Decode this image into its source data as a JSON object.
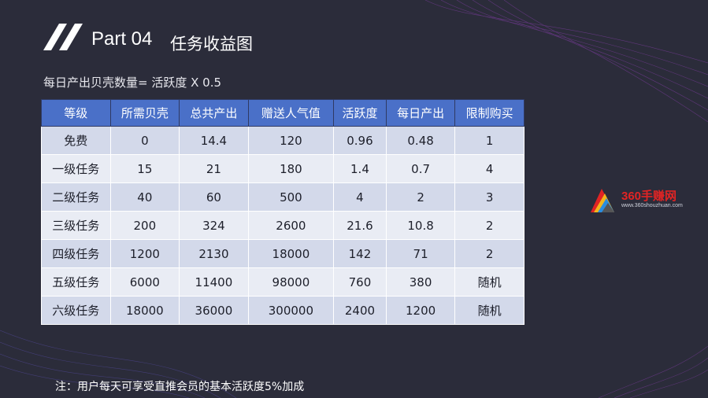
{
  "slide": {
    "part": "Part 04",
    "subtitle": "任务收益图",
    "formula": "每日产出贝壳数量= 活跃度 X 0.5",
    "note": "注：用户每天可享受直推会员的基本活跃度5%加成"
  },
  "table": {
    "headers": [
      "等级",
      "所需贝壳",
      "总共产出",
      "赠送人气值",
      "活跃度",
      "每日产出",
      "限制购买"
    ],
    "rows": [
      [
        "免费",
        "0",
        "14.4",
        "120",
        "0.96",
        "0.48",
        "1"
      ],
      [
        "一级任务",
        "15",
        "21",
        "180",
        "1.4",
        "0.7",
        "4"
      ],
      [
        "二级任务",
        "40",
        "60",
        "500",
        "4",
        "2",
        "3"
      ],
      [
        "三级任务",
        "200",
        "324",
        "2600",
        "21.6",
        "10.8",
        "2"
      ],
      [
        "四级任务",
        "1200",
        "2130",
        "18000",
        "142",
        "71",
        "2"
      ],
      [
        "五级任务",
        "6000",
        "11400",
        "98000",
        "760",
        "380",
        "随机"
      ],
      [
        "六级任务",
        "18000",
        "36000",
        "300000",
        "2400",
        "1200",
        "随机"
      ]
    ]
  },
  "watermark": {
    "name": "360手赚网",
    "url": "www.360shouzhuan.com"
  },
  "colors": {
    "background": "#2b2c3a",
    "header": "#4a70c8",
    "row_odd": "#d3d9ea",
    "row_even": "#e9ecf4",
    "accent_wave": "#8a3fb0"
  }
}
